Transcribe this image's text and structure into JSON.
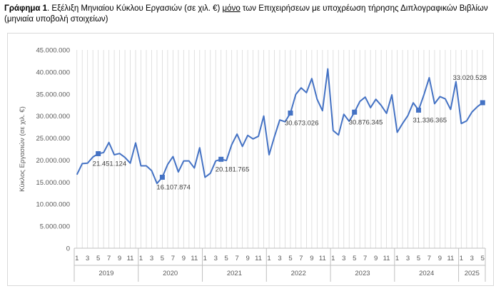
{
  "caption": {
    "number": "Γράφημα 1",
    "before": ". Εξέλιξη Μηνιαίου Κύκλου Εργασιών (σε χιλ. €) ",
    "emph": "μόνο",
    "after": " των Επιχειρήσεων με υποχρέωση τήρησης Διπλογραφικών Βιβλίων (μηνιαία υποβολή στοιχείων)"
  },
  "chart_data": {
    "type": "line",
    "title": "",
    "xlabel": "",
    "ylabel": "Κύκλος Εργασιών (σε χιλ. €)",
    "ylim": [
      0,
      45000000
    ],
    "yticks": [
      0,
      5000000,
      10000000,
      15000000,
      20000000,
      25000000,
      30000000,
      35000000,
      40000000,
      45000000
    ],
    "ytick_labels": [
      "0",
      "5.000.000",
      "10.000.000",
      "15.000.000",
      "20.000.000",
      "25.000.000",
      "30.000.000",
      "35.000.000",
      "40.000.000",
      "45.000.000"
    ],
    "grid": "vertical",
    "legend": "none",
    "color": "#4472c4",
    "years": [
      {
        "label": "2019",
        "months": 12
      },
      {
        "label": "2020",
        "months": 12
      },
      {
        "label": "2021",
        "months": 12
      },
      {
        "label": "2022",
        "months": 12
      },
      {
        "label": "2023",
        "months": 12
      },
      {
        "label": "2024",
        "months": 12
      },
      {
        "label": "2025",
        "months": 5
      }
    ],
    "month_tick_labels": [
      "1",
      "3",
      "5",
      "7",
      "9",
      "11"
    ],
    "values": [
      16700000,
      19200000,
      19300000,
      20700000,
      21451124,
      21700000,
      24000000,
      21200000,
      21500000,
      20600000,
      19300000,
      23900000,
      18700000,
      18700000,
      17600000,
      14700000,
      16107874,
      19000000,
      20800000,
      17300000,
      19800000,
      19800000,
      18200000,
      22800000,
      16100000,
      17000000,
      19800000,
      20181765,
      19900000,
      23500000,
      25900000,
      23100000,
      25600000,
      24800000,
      25400000,
      30000000,
      21200000,
      25300000,
      29100000,
      28700000,
      30673026,
      34900000,
      36400000,
      35300000,
      38500000,
      33800000,
      31200000,
      40700000,
      26700000,
      25700000,
      30400000,
      28800000,
      30876345,
      33300000,
      34300000,
      31900000,
      33800000,
      32400000,
      30600000,
      34800000,
      26300000,
      28300000,
      30100000,
      33000000,
      31336365,
      34800000,
      38700000,
      32800000,
      34400000,
      33900000,
      31500000,
      37800000,
      28300000,
      28900000,
      30900000,
      32100000,
      33020528
    ],
    "markers": [
      {
        "index": 4,
        "label": "21.451.124",
        "pos": "right-below"
      },
      {
        "index": 16,
        "label": "16.107.874",
        "pos": "right-below"
      },
      {
        "index": 27,
        "label": "20.181.765",
        "pos": "right-below"
      },
      {
        "index": 40,
        "label": "30.673.026",
        "pos": "right-below"
      },
      {
        "index": 52,
        "label": "30.876.345",
        "pos": "right-below"
      },
      {
        "index": 64,
        "label": "31.336.365",
        "pos": "right-below"
      },
      {
        "index": 76,
        "label": "33.020.528",
        "pos": "above"
      }
    ]
  }
}
